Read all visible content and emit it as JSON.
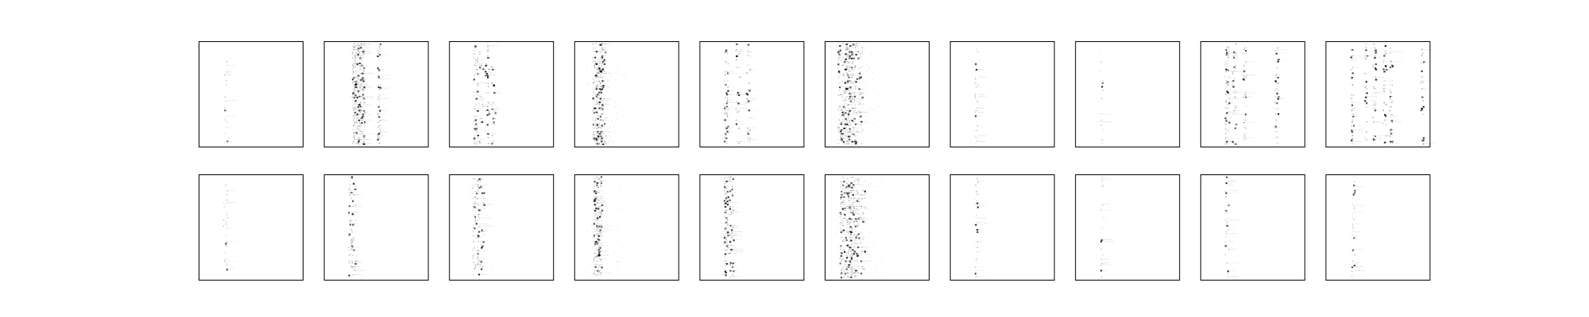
{
  "figure": {
    "rows": 2,
    "cols": 10,
    "background": "#ffffff",
    "frame_color": "#000000",
    "ink_color": "#000000"
  },
  "chart_data": [
    {
      "panel": "row1-col1",
      "type": "heatmap",
      "ticks_shown": false,
      "pattern": "single-column-points",
      "columns": [
        0.26
      ],
      "spread": 0.02,
      "density": 0.18,
      "noise": 0.0
    },
    {
      "panel": "row1-col2",
      "type": "heatmap",
      "ticks_shown": false,
      "pattern": "column-cluster",
      "columns": [
        0.28,
        0.31,
        0.34,
        0.37,
        0.52
      ],
      "spread": 0.015,
      "density": 0.7,
      "noise": 0.0
    },
    {
      "panel": "row1-col3",
      "type": "heatmap",
      "ticks_shown": false,
      "pattern": "column-cluster",
      "columns": [
        0.25,
        0.3,
        0.36,
        0.42
      ],
      "spread": 0.02,
      "density": 0.35,
      "noise": 0.0
    },
    {
      "panel": "row1-col4",
      "type": "heatmap",
      "ticks_shown": false,
      "pattern": "dense-band",
      "columns": [
        0.22,
        0.25
      ],
      "spread": 0.05,
      "density": 0.6,
      "noise": 0.15
    },
    {
      "panel": "row1-col5",
      "type": "heatmap",
      "ticks_shown": false,
      "pattern": "column-cluster",
      "columns": [
        0.25,
        0.36,
        0.46
      ],
      "spread": 0.02,
      "density": 0.4,
      "noise": 0.0
    },
    {
      "panel": "row1-col6",
      "type": "heatmap",
      "ticks_shown": false,
      "pattern": "dense-band",
      "columns": [
        0.18,
        0.24,
        0.3
      ],
      "spread": 0.06,
      "density": 0.65,
      "noise": 0.2
    },
    {
      "panel": "row1-col7",
      "type": "heatmap",
      "ticks_shown": false,
      "pattern": "single-column-points",
      "columns": [
        0.25
      ],
      "spread": 0.015,
      "density": 0.25,
      "noise": 0.0
    },
    {
      "panel": "row1-col8",
      "type": "heatmap",
      "ticks_shown": false,
      "pattern": "single-column-points",
      "columns": [
        0.25
      ],
      "spread": 0.01,
      "density": 0.12,
      "noise": 0.0
    },
    {
      "panel": "row1-col9",
      "type": "heatmap",
      "ticks_shown": false,
      "pattern": "column-cluster",
      "columns": [
        0.25,
        0.32,
        0.42,
        0.72
      ],
      "spread": 0.02,
      "density": 0.45,
      "noise": 0.0
    },
    {
      "panel": "row1-col10",
      "type": "heatmap",
      "ticks_shown": false,
      "pattern": "column-cluster",
      "columns": [
        0.25,
        0.38,
        0.46,
        0.56,
        0.62,
        0.92
      ],
      "spread": 0.015,
      "density": 0.4,
      "noise": 0.0
    },
    {
      "panel": "row2-col1",
      "type": "heatmap",
      "ticks_shown": false,
      "pattern": "single-column-points",
      "columns": [
        0.25
      ],
      "spread": 0.02,
      "density": 0.3,
      "noise": 0.0
    },
    {
      "panel": "row2-col2",
      "type": "heatmap",
      "ticks_shown": false,
      "pattern": "column-cluster",
      "columns": [
        0.25,
        0.28
      ],
      "spread": 0.02,
      "density": 0.35,
      "noise": 0.0
    },
    {
      "panel": "row2-col3",
      "type": "heatmap",
      "ticks_shown": false,
      "pattern": "column-cluster",
      "columns": [
        0.25,
        0.3
      ],
      "spread": 0.03,
      "density": 0.45,
      "noise": 0.05
    },
    {
      "panel": "row2-col4",
      "type": "heatmap",
      "ticks_shown": false,
      "pattern": "dense-band",
      "columns": [
        0.22
      ],
      "spread": 0.04,
      "density": 0.55,
      "noise": 0.1
    },
    {
      "panel": "row2-col5",
      "type": "heatmap",
      "ticks_shown": false,
      "pattern": "column-cluster",
      "columns": [
        0.25,
        0.3
      ],
      "spread": 0.02,
      "density": 0.5,
      "noise": 0.0
    },
    {
      "panel": "row2-col6",
      "type": "heatmap",
      "ticks_shown": false,
      "pattern": "dense-band",
      "columns": [
        0.2,
        0.26,
        0.32
      ],
      "spread": 0.06,
      "density": 0.6,
      "noise": 0.2
    },
    {
      "panel": "row2-col7",
      "type": "heatmap",
      "ticks_shown": false,
      "pattern": "single-column-points",
      "columns": [
        0.25
      ],
      "spread": 0.015,
      "density": 0.35,
      "noise": 0.0
    },
    {
      "panel": "row2-col8",
      "type": "heatmap",
      "ticks_shown": false,
      "pattern": "single-column-points",
      "columns": [
        0.25
      ],
      "spread": 0.01,
      "density": 0.2,
      "noise": 0.0
    },
    {
      "panel": "row2-col9",
      "type": "heatmap",
      "ticks_shown": false,
      "pattern": "single-column-points",
      "columns": [
        0.25
      ],
      "spread": 0.02,
      "density": 0.3,
      "noise": 0.0
    },
    {
      "panel": "row2-col10",
      "type": "heatmap",
      "ticks_shown": false,
      "pattern": "single-column-points",
      "columns": [
        0.26
      ],
      "spread": 0.015,
      "density": 0.25,
      "noise": 0.0
    }
  ]
}
